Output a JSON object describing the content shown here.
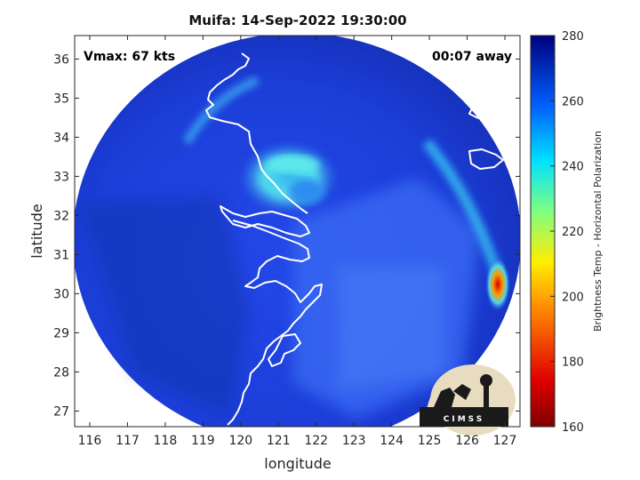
{
  "title": "Muifa: 14-Sep-2022 19:30:00",
  "vmax_label": "Vmax: 67 kts",
  "time_label": "00:07 away",
  "xlabel": "longitude",
  "ylabel": "latitude",
  "colorbar_label": "Brightness Temp - Horizontal Polarization",
  "logo_text": "CIMSS",
  "chart_data": {
    "type": "heatmap",
    "title": "Muifa: 14-Sep-2022 19:30:00",
    "xlabel": "longitude",
    "ylabel": "latitude",
    "xlim": [
      115.6,
      127.4
    ],
    "ylim": [
      26.6,
      36.6
    ],
    "xticks": [
      116,
      117,
      118,
      119,
      120,
      121,
      122,
      123,
      124,
      125,
      126,
      127
    ],
    "yticks": [
      27,
      28,
      29,
      30,
      31,
      32,
      33,
      34,
      35,
      36
    ],
    "colorbar": {
      "label": "Brightness Temp - Horizontal Polarization",
      "range": [
        160,
        280
      ],
      "ticks": [
        160,
        180,
        200,
        220,
        240,
        260,
        280
      ],
      "colormap": "jet"
    },
    "storm_center": {
      "lon": 121.9,
      "lat": 32.6
    },
    "swath_center": {
      "lon": 121.4,
      "lat": 31.5
    },
    "vmax_kts": 67
  },
  "colors": {
    "ocean_base": "#1f3ee6",
    "land_base": "#1633c8",
    "eye_wall": "#4fd7e8",
    "coast": "#ffffff",
    "text": "#111111"
  }
}
